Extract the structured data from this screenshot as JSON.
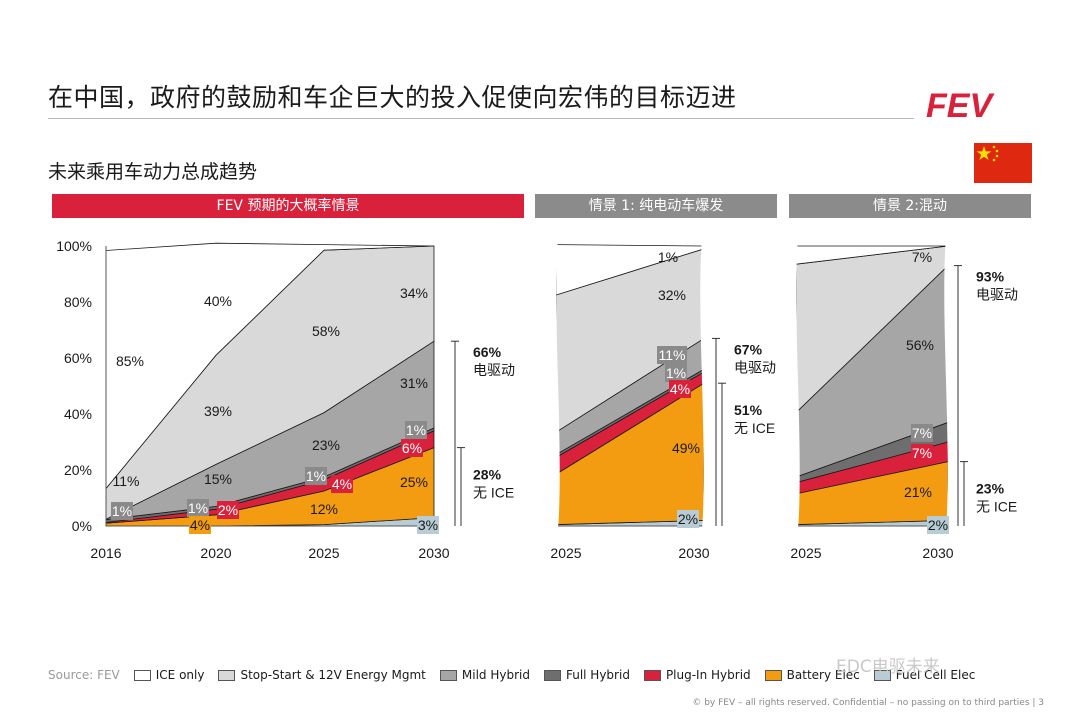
{
  "slide": {
    "title": "在中国，政府的鼓励和车企巨大的投入促使向宏伟的目标迈进",
    "subtitle": "未来乘用车动力总成趋势",
    "logo_text": "FEV",
    "flag_icon": "china-flag-icon",
    "footer": "© by FEV – all rights reserved. Confidential – no passing on to third parties  |  3",
    "watermark": "EDC电驱未来",
    "source": "Source: FEV"
  },
  "banners": {
    "main": "FEV 预期的大概率情景",
    "scenario1": "情景 1: 纯电动车爆发",
    "scenario2": "情景 2:混动"
  },
  "colors": {
    "ice": "#ffffff",
    "ss": "#d9d9d9",
    "mild": "#a6a6a6",
    "full": "#6e6e6e",
    "phev": "#d9213c",
    "bev": "#f39c12",
    "fcev": "#b8ccd6",
    "brand": "#d9213c"
  },
  "legend": [
    {
      "key": "ice",
      "label": "ICE only"
    },
    {
      "key": "ss",
      "label": "Stop-Start & 12V Energy Mgmt"
    },
    {
      "key": "mild",
      "label": "Mild Hybrid"
    },
    {
      "key": "full",
      "label": "Full Hybrid"
    },
    {
      "key": "phev",
      "label": "Plug-In Hybrid"
    },
    {
      "key": "bev",
      "label": "Battery Elec"
    },
    {
      "key": "fcev",
      "label": "Fuel Cell Elec"
    }
  ],
  "chart_data": [
    {
      "type": "area",
      "title": "FEV 预期的大概率情景",
      "categories": [
        "2016",
        "2020",
        "2025",
        "2030"
      ],
      "ylim": [
        0,
        100
      ],
      "yticks": [
        "0%",
        "20%",
        "40%",
        "60%",
        "80%",
        "100%"
      ],
      "series": [
        {
          "name": "Fuel Cell Elec",
          "key": "fcev",
          "values": [
            0,
            0,
            0.5,
            3
          ]
        },
        {
          "name": "Battery Elec",
          "key": "bev",
          "values": [
            1,
            4,
            12,
            25
          ]
        },
        {
          "name": "Plug-In Hybrid",
          "key": "phev",
          "values": [
            0.3,
            2,
            4,
            6
          ]
        },
        {
          "name": "Full Hybrid",
          "key": "full",
          "values": [
            1,
            1,
            1,
            1
          ]
        },
        {
          "name": "Mild Hybrid",
          "key": "mild",
          "values": [
            0.1,
            15,
            23,
            31
          ]
        },
        {
          "name": "Stop-Start & 12V Energy Mgmt",
          "key": "ss",
          "values": [
            11,
            39,
            58,
            34
          ]
        },
        {
          "name": "ICE only",
          "key": "ice",
          "values": [
            85,
            40,
            2,
            0
          ]
        }
      ],
      "labels": [
        "11%",
        "85%",
        "1%",
        "40%",
        "39%",
        "15%",
        "1%",
        "2%",
        "4%",
        "58%",
        "23%",
        "1%",
        "4%",
        "12%",
        "34%",
        "31%",
        "1%",
        "6%",
        "25%",
        "3%"
      ],
      "brackets": [
        {
          "pct": "66%",
          "text": "电驱动"
        },
        {
          "pct": "28%",
          "text": "无 ICE"
        }
      ]
    },
    {
      "type": "area",
      "title": "情景 1: 纯电动车爆发",
      "categories": [
        "2025",
        "2030"
      ],
      "ylim": [
        0,
        100
      ],
      "series": [
        {
          "name": "Fuel Cell Elec",
          "key": "fcev",
          "values": [
            0.5,
            2
          ]
        },
        {
          "name": "Battery Elec",
          "key": "bev",
          "values": [
            18,
            49
          ]
        },
        {
          "name": "Plug-In Hybrid",
          "key": "phev",
          "values": [
            6,
            4
          ]
        },
        {
          "name": "Full Hybrid",
          "key": "full",
          "values": [
            1,
            1
          ]
        },
        {
          "name": "Mild Hybrid",
          "key": "mild",
          "values": [
            8,
            11
          ]
        },
        {
          "name": "Stop-Start & 12V Energy Mgmt",
          "key": "ss",
          "values": [
            49,
            32
          ]
        },
        {
          "name": "ICE only",
          "key": "ice",
          "values": [
            18,
            1
          ]
        }
      ],
      "labels": [
        "1%",
        "32%",
        "11%",
        "1%",
        "4%",
        "49%",
        "2%"
      ],
      "brackets": [
        {
          "pct": "67%",
          "text": "电驱动"
        },
        {
          "pct": "51%",
          "text": "无 ICE"
        }
      ]
    },
    {
      "type": "area",
      "title": "情景 2:混动",
      "categories": [
        "2025",
        "2030"
      ],
      "ylim": [
        0,
        100
      ],
      "series": [
        {
          "name": "Fuel Cell Elec",
          "key": "fcev",
          "values": [
            0.5,
            2
          ]
        },
        {
          "name": "Battery Elec",
          "key": "bev",
          "values": [
            11,
            21
          ]
        },
        {
          "name": "Plug-In Hybrid",
          "key": "phev",
          "values": [
            4,
            7
          ]
        },
        {
          "name": "Full Hybrid",
          "key": "full",
          "values": [
            2,
            7
          ]
        },
        {
          "name": "Mild Hybrid",
          "key": "mild",
          "values": [
            23,
            56
          ]
        },
        {
          "name": "Stop-Start & 12V Energy Mgmt",
          "key": "ss",
          "values": [
            53,
            7
          ]
        },
        {
          "name": "ICE only",
          "key": "ice",
          "values": [
            6.5,
            0
          ]
        }
      ],
      "labels": [
        "7%",
        "56%",
        "7%",
        "7%",
        "21%",
        "2%"
      ],
      "brackets": [
        {
          "pct": "93%",
          "text": "电驱动"
        },
        {
          "pct": "23%",
          "text": "无 ICE"
        }
      ]
    }
  ]
}
